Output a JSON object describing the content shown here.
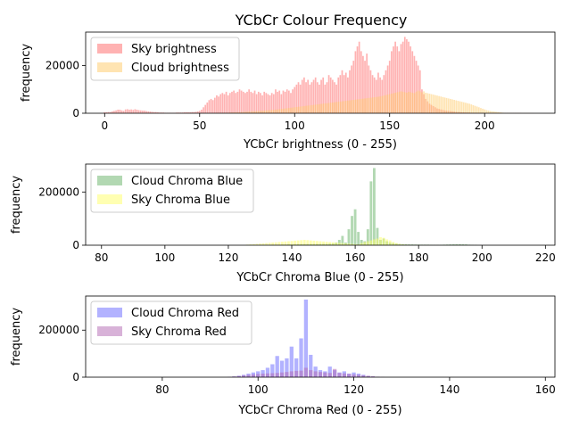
{
  "figure_title": "YCbCr Colour Frequency",
  "chart_data": [
    {
      "type": "bar",
      "xlabel": "YCbCr brightness (0 - 255)",
      "ylabel": "frequency",
      "xlim": [
        -10,
        237
      ],
      "ylim": [
        0,
        34000
      ],
      "xticks": [
        0,
        50,
        100,
        150,
        200
      ],
      "yticks": [
        0,
        20000
      ],
      "legend_position": "upper-left",
      "grid": false,
      "series": [
        {
          "name": "Sky brightness",
          "color": "#ff7f7f",
          "opacity": 0.6,
          "x_start": 0,
          "values": [
            400,
            400,
            500,
            500,
            800,
            1000,
            1200,
            1500,
            1500,
            1200,
            1000,
            1600,
            1700,
            1500,
            1600,
            1400,
            1700,
            1500,
            1300,
            1200,
            1100,
            1100,
            900,
            800,
            700,
            600,
            500,
            500,
            400,
            300,
            300,
            300,
            200,
            200,
            200,
            200,
            200,
            200,
            300,
            300,
            300,
            300,
            400,
            400,
            400,
            400,
            500,
            500,
            600,
            800,
            1000,
            1500,
            2500,
            3500,
            4500,
            5500,
            6000,
            5500,
            6500,
            7500,
            7000,
            8000,
            8500,
            8000,
            9000,
            7500,
            8500,
            9000,
            9500,
            8500,
            9000,
            10000,
            9500,
            9000,
            8500,
            9000,
            10000,
            9000,
            8500,
            9500,
            8000,
            9000,
            8500,
            7500,
            9000,
            8500,
            8000,
            7500,
            8500,
            8000,
            10000,
            9000,
            9500,
            8000,
            9500,
            9000,
            10000,
            9500,
            8500,
            10000,
            11000,
            12000,
            13000,
            12000,
            14000,
            15000,
            13000,
            14000,
            12000,
            13000,
            14000,
            15000,
            13000,
            12000,
            14000,
            15000,
            12000,
            13000,
            16000,
            15000,
            14000,
            13000,
            12000,
            15000,
            16000,
            18000,
            16000,
            17000,
            15000,
            18000,
            20000,
            22000,
            26000,
            28000,
            30000,
            26000,
            24000,
            22000,
            25000,
            20000,
            18000,
            16000,
            15000,
            14000,
            17000,
            15000,
            14000,
            16000,
            18000,
            20000,
            22000,
            26000,
            28000,
            30000,
            28000,
            26000,
            29000,
            30000,
            32000,
            31000,
            30000,
            28000,
            26000,
            24000,
            22000,
            20000,
            18000,
            10000,
            8000,
            6000,
            5000,
            4000,
            3500,
            3000,
            2500,
            2000,
            1800,
            1600,
            1400,
            1200,
            1100,
            1000,
            900,
            800,
            700,
            600,
            500,
            500,
            400,
            400,
            300,
            300,
            300,
            200,
            200,
            200,
            200,
            200,
            100,
            100,
            100,
            100,
            100,
            100,
            100,
            100,
            100,
            100,
            100,
            100,
            100,
            100,
            100,
            100,
            100,
            100,
            100,
            100,
            100,
            100
          ]
        },
        {
          "name": "Cloud brightness",
          "color": "#ffc966",
          "opacity": 0.5,
          "x_start": 0,
          "values": [
            0,
            0,
            0,
            0,
            0,
            0,
            0,
            0,
            0,
            0,
            0,
            0,
            0,
            0,
            0,
            0,
            0,
            0,
            0,
            0,
            0,
            0,
            0,
            0,
            0,
            0,
            0,
            0,
            0,
            0,
            0,
            0,
            0,
            0,
            0,
            0,
            0,
            0,
            0,
            0,
            0,
            0,
            0,
            0,
            0,
            0,
            0,
            0,
            0,
            0,
            0,
            0,
            0,
            0,
            0,
            0,
            0,
            0,
            0,
            0,
            100,
            100,
            100,
            200,
            200,
            200,
            300,
            300,
            300,
            400,
            400,
            400,
            500,
            500,
            600,
            600,
            700,
            700,
            800,
            800,
            900,
            900,
            1000,
            1000,
            1100,
            1200,
            1300,
            1300,
            1400,
            1400,
            1500,
            1600,
            1700,
            1800,
            1900,
            2000,
            2100,
            2200,
            2300,
            2400,
            2500,
            2600,
            2700,
            2800,
            2900,
            3000,
            3100,
            3200,
            3300,
            3400,
            3500,
            3600,
            3700,
            3800,
            3900,
            4000,
            4100,
            4200,
            4300,
            4400,
            4500,
            4600,
            4700,
            4800,
            4900,
            5000,
            5100,
            5200,
            5300,
            5400,
            5500,
            5600,
            5700,
            5800,
            5900,
            6000,
            6100,
            6200,
            6300,
            6400,
            6500,
            6600,
            6700,
            6800,
            6900,
            7000,
            7200,
            7400,
            7600,
            7800,
            8000,
            8200,
            8400,
            8600,
            8800,
            9000,
            9200,
            9000,
            8800,
            8600,
            9000,
            8800,
            8600,
            8400,
            9000,
            9500,
            9200,
            8800,
            9200,
            8600,
            8400,
            8200,
            8000,
            7800,
            7600,
            7400,
            7200,
            7000,
            6800,
            6600,
            6400,
            6200,
            6000,
            5800,
            5600,
            5400,
            5200,
            5000,
            4800,
            4600,
            4400,
            4200,
            4000,
            3700,
            3400,
            3100,
            2800,
            2500,
            2200,
            1900,
            1600,
            1300,
            1100,
            900,
            800,
            700,
            600,
            500,
            400,
            300,
            200,
            100,
            100,
            100,
            100,
            100,
            100,
            100,
            100,
            100,
            100,
            100,
            100,
            100,
            100,
            100
          ]
        }
      ]
    },
    {
      "type": "bar",
      "xlabel": "YCbCr Chroma Blue (0 - 255)",
      "ylabel": "frequency",
      "xlim": [
        75,
        223
      ],
      "ylim": [
        0,
        305000
      ],
      "xticks": [
        80,
        100,
        120,
        140,
        160,
        180,
        200,
        220
      ],
      "yticks": [
        0,
        200000
      ],
      "legend_position": "upper-left",
      "grid": false,
      "series": [
        {
          "name": "Cloud Chroma Blue",
          "color": "#66b266",
          "opacity": 0.5,
          "x_start": 126,
          "values": [
            1000,
            1000,
            1000,
            1000,
            1000,
            1500,
            1500,
            1500,
            2000,
            2000,
            2000,
            2500,
            2500,
            3000,
            3000,
            3000,
            3500,
            3500,
            4000,
            4000,
            4000,
            4500,
            4500,
            5000,
            5000,
            5000,
            6000,
            7000,
            10000,
            20000,
            35000,
            10000,
            60000,
            110000,
            135000,
            50000,
            20000,
            15000,
            60000,
            240000,
            290000,
            65000,
            20000,
            25000,
            15000,
            10000,
            8000,
            6000,
            5000,
            4000,
            3500,
            3000,
            3000,
            2500,
            2500,
            2000,
            2000,
            2000,
            1500,
            1500,
            1500,
            1500,
            2000,
            2500,
            3000,
            3500,
            4000,
            4000,
            3500,
            3000,
            2000,
            1500,
            1000
          ]
        },
        {
          "name": "Sky Chroma Blue",
          "color": "#ffff66",
          "opacity": 0.5,
          "x_start": 126,
          "values": [
            2000,
            3000,
            4000,
            5000,
            6000,
            7000,
            8000,
            9000,
            10000,
            11000,
            12000,
            13000,
            14000,
            15000,
            16000,
            17000,
            18000,
            19000,
            20000,
            19000,
            18000,
            17000,
            16000,
            15000,
            14000,
            13000,
            12000,
            11000,
            10000,
            9000,
            8000,
            7000,
            6000,
            5000,
            4000,
            3000,
            8000,
            12000,
            15000,
            18000,
            22000,
            25000,
            30000,
            28000,
            22000,
            18000,
            12000,
            8000,
            5000,
            3000,
            2000,
            1500,
            1000,
            1000,
            800,
            600,
            500,
            400,
            300,
            200,
            100,
            100,
            100,
            100,
            100,
            100,
            100,
            100,
            100,
            100,
            100,
            100,
            100
          ]
        }
      ]
    },
    {
      "type": "bar",
      "xlabel": "YCbCr Chroma Red (0 - 255)",
      "ylabel": "frequency",
      "xlim": [
        64,
        162
      ],
      "ylim": [
        0,
        345000
      ],
      "xticks": [
        80,
        100,
        120,
        140,
        160
      ],
      "yticks": [
        0,
        200000
      ],
      "legend_position": "upper-left",
      "grid": false,
      "series": [
        {
          "name": "Cloud Chroma Red",
          "color": "#6666ff",
          "opacity": 0.5,
          "x_start": 94,
          "values": [
            1000,
            3000,
            6000,
            10000,
            15000,
            20000,
            25000,
            30000,
            40000,
            55000,
            90000,
            70000,
            80000,
            130000,
            80000,
            165000,
            330000,
            95000,
            45000,
            30000,
            25000,
            45000,
            30000,
            20000,
            25000,
            15000,
            20000,
            15000,
            10000,
            5000,
            3000,
            1000,
            500
          ]
        },
        {
          "name": "Sky Chroma Red",
          "color": "#b266b2",
          "opacity": 0.5,
          "x_start": 94,
          "values": [
            1000,
            3000,
            5000,
            8000,
            10000,
            12000,
            14000,
            15000,
            16000,
            17000,
            18000,
            20000,
            22000,
            25000,
            27000,
            28000,
            40000,
            30000,
            25000,
            22000,
            20000,
            18000,
            35000,
            18000,
            16000,
            14000,
            12000,
            10000,
            8000,
            6000,
            4000,
            2000,
            1000
          ]
        }
      ]
    }
  ]
}
